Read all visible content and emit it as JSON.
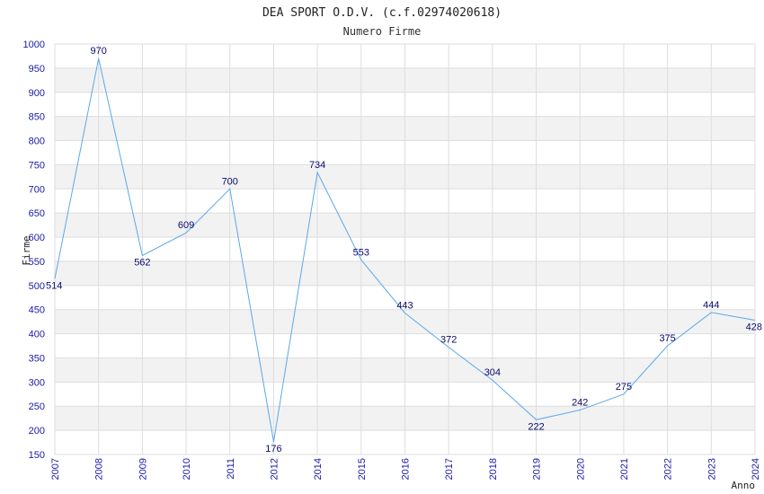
{
  "chart_data": {
    "type": "line",
    "title": "DEA SPORT O.D.V. (c.f.02974020618)",
    "subtitle": "Numero Firme",
    "xlabel": "Anno",
    "ylabel": "Firme",
    "categories": [
      "2007",
      "2008",
      "2009",
      "2010",
      "2011",
      "2012",
      "2014",
      "2015",
      "2016",
      "2017",
      "2018",
      "2019",
      "2020",
      "2021",
      "2022",
      "2023",
      "2024"
    ],
    "values": [
      514,
      970,
      562,
      609,
      700,
      176,
      734,
      553,
      443,
      372,
      304,
      222,
      242,
      275,
      375,
      444,
      428
    ],
    "ylim": [
      150,
      1000
    ],
    "ytick_step": 50,
    "grid": true,
    "colors": {
      "line": "#5aa9ea",
      "band": "#f2f2f2",
      "grid": "#dddddd",
      "tick_text": "#1a1aa6",
      "label_text": "#0a0a6e"
    }
  }
}
